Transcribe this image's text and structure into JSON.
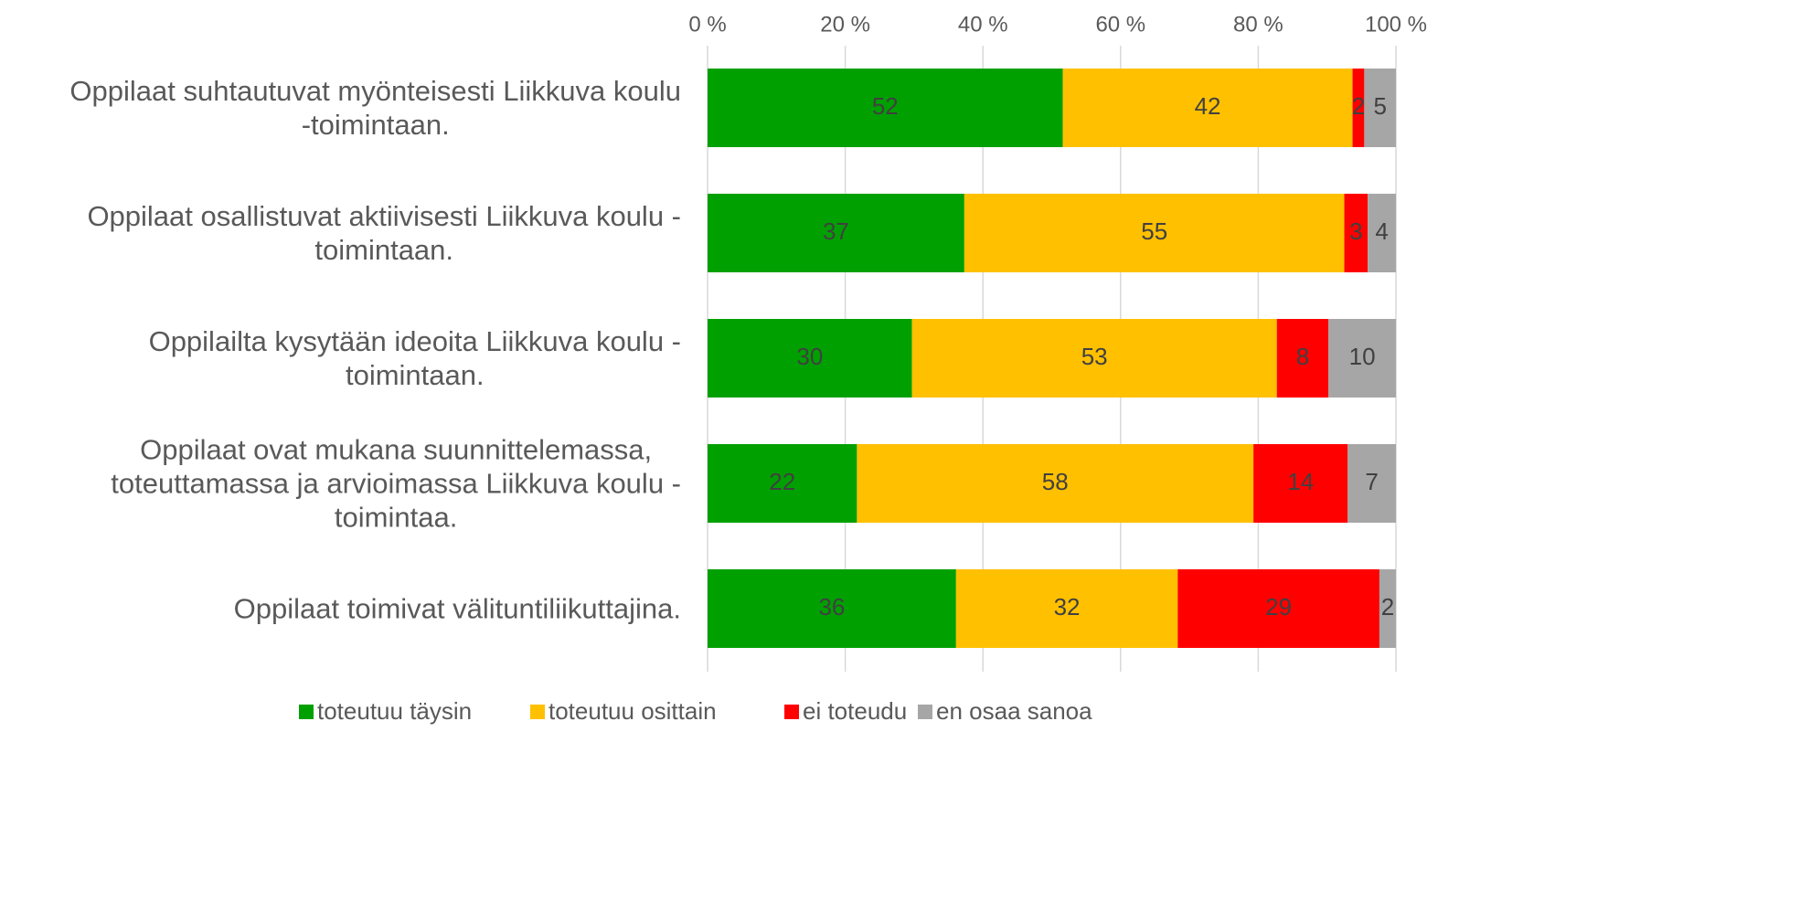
{
  "chart_data": {
    "type": "stacked_barh",
    "categories": [
      [
        "Oppilaat suhtautuvat myönteisesti Liikkuva koulu",
        "-toimintaan."
      ],
      [
        "Oppilaat osallistuvat aktiivisesti Liikkuva koulu -",
        "toimintaan."
      ],
      [
        "Oppilailta kysytään ideoita Liikkuva koulu -",
        "toimintaan."
      ],
      [
        "Oppilaat ovat mukana suunnittelemassa,",
        "toteuttamassa ja arvioimassa Liikkuva koulu -",
        "toimintaa."
      ],
      [
        "Oppilaat toimivat välituntiliikuttajina."
      ]
    ],
    "series": [
      {
        "name": "toteutuu täysin",
        "color": "#00a000",
        "values": [
          51.6,
          37.3,
          29.7,
          21.7,
          36.1
        ],
        "value_labels": [
          "52",
          "37",
          "30",
          "22",
          "36"
        ]
      },
      {
        "name": "toteutuu osittain",
        "color": "#ffc000",
        "values": [
          42.1,
          55.2,
          53.0,
          57.6,
          32.2
        ],
        "value_labels": [
          "42",
          "55",
          "53",
          "58",
          "32"
        ]
      },
      {
        "name": "ei toteudu",
        "color": "#ff0000",
        "values": [
          1.7,
          3.4,
          7.5,
          13.7,
          29.3
        ],
        "value_labels": [
          "2",
          "3",
          "8",
          "14",
          "29"
        ]
      },
      {
        "name": "en osaa sanoa",
        "color": "#a6a6a6",
        "values": [
          4.6,
          4.1,
          9.8,
          7.0,
          2.4
        ],
        "value_labels": [
          "5",
          "4",
          "10",
          "7",
          "2"
        ]
      }
    ],
    "xlim": [
      0,
      100
    ],
    "xticks": [
      {
        "value": 0,
        "label": "0 %"
      },
      {
        "value": 20,
        "label": "20 %"
      },
      {
        "value": 40,
        "label": "40 %"
      },
      {
        "value": 60,
        "label": "60 %"
      },
      {
        "value": 80,
        "label": "80 %"
      },
      {
        "value": 100,
        "label": "100 %"
      }
    ],
    "grid": true,
    "legend": "bottom"
  }
}
